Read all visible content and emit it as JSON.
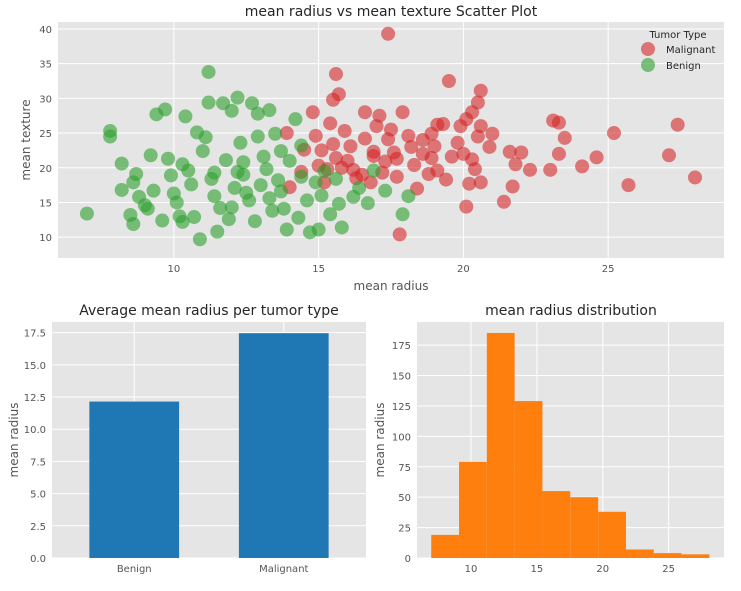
{
  "colors": {
    "malignant": "#d62728",
    "benign": "#2ca02c",
    "bar": "#1f77b4",
    "hist": "#ff7f0e",
    "panel_bg": "#e5e5e5",
    "grid": "#ffffff"
  },
  "chart_data": [
    {
      "type": "scatter",
      "title": "mean radius vs mean texture Scatter Plot",
      "xlabel": "mean radius",
      "ylabel": "mean texture",
      "xlim": [
        6,
        29
      ],
      "ylim": [
        7,
        41
      ],
      "xticks": [
        10,
        15,
        20,
        25
      ],
      "yticks": [
        10,
        15,
        20,
        25,
        30,
        35,
        40
      ],
      "legend": {
        "title": "Tumor Type",
        "position": "top-right",
        "entries": [
          "Malignant",
          "Benign"
        ]
      },
      "series": [
        {
          "name": "Malignant",
          "points": [
            [
              17.4,
              39.3
            ],
            [
              19.5,
              32.5
            ],
            [
              20.6,
              31.1
            ],
            [
              27.4,
              26.2
            ],
            [
              28.0,
              18.6
            ],
            [
              25.7,
              17.5
            ],
            [
              27.1,
              21.8
            ],
            [
              25.2,
              25.0
            ],
            [
              24.6,
              21.5
            ],
            [
              24.1,
              20.2
            ],
            [
              23.1,
              26.8
            ],
            [
              23.3,
              26.5
            ],
            [
              23.5,
              24.3
            ],
            [
              23.3,
              22.0
            ],
            [
              23.0,
              19.7
            ],
            [
              22.3,
              19.7
            ],
            [
              21.7,
              17.3
            ],
            [
              21.6,
              22.3
            ],
            [
              21.8,
              20.5
            ],
            [
              21.4,
              15.1
            ],
            [
              20.9,
              23.0
            ],
            [
              21.0,
              24.9
            ],
            [
              20.6,
              26.0
            ],
            [
              20.5,
              24.5
            ],
            [
              20.3,
              28.0
            ],
            [
              20.5,
              29.4
            ],
            [
              20.1,
              27.0
            ],
            [
              19.9,
              26.0
            ],
            [
              19.8,
              23.6
            ],
            [
              20.0,
              22.0
            ],
            [
              20.3,
              21.2
            ],
            [
              20.4,
              19.8
            ],
            [
              20.6,
              17.9
            ],
            [
              20.2,
              17.7
            ],
            [
              20.1,
              14.4
            ],
            [
              19.6,
              21.6
            ],
            [
              19.3,
              26.3
            ],
            [
              19.1,
              26.2
            ],
            [
              18.9,
              24.9
            ],
            [
              19.0,
              23.1
            ],
            [
              18.9,
              21.4
            ],
            [
              18.8,
              19.1
            ],
            [
              18.6,
              22.0
            ],
            [
              18.4,
              17.0
            ],
            [
              18.3,
              20.4
            ],
            [
              18.2,
              23.0
            ],
            [
              18.1,
              24.6
            ],
            [
              17.9,
              28.0
            ],
            [
              17.6,
              22.2
            ],
            [
              17.5,
              25.5
            ],
            [
              17.4,
              24.1
            ],
            [
              17.3,
              20.9
            ],
            [
              17.2,
              19.3
            ],
            [
              17.0,
              26.0
            ],
            [
              16.9,
              21.7
            ],
            [
              16.6,
              28.0
            ],
            [
              16.6,
              24.2
            ],
            [
              16.5,
              19.0
            ],
            [
              16.3,
              18.5
            ],
            [
              16.1,
              23.1
            ],
            [
              16.0,
              21.0
            ],
            [
              15.9,
              25.3
            ],
            [
              15.6,
              21.4
            ],
            [
              15.5,
              29.8
            ],
            [
              15.7,
              30.6
            ],
            [
              15.4,
              26.4
            ],
            [
              15.5,
              23.4
            ],
            [
              15.3,
              19.8
            ],
            [
              15.2,
              17.9
            ],
            [
              15.1,
              22.5
            ],
            [
              15.0,
              20.3
            ],
            [
              15.6,
              33.5
            ],
            [
              14.8,
              28.0
            ],
            [
              14.9,
              24.6
            ],
            [
              14.5,
              22.6
            ],
            [
              14.4,
              19.4
            ],
            [
              13.9,
              25.0
            ],
            [
              14.0,
              17.2
            ],
            [
              16.9,
              22.3
            ],
            [
              17.7,
              18.7
            ],
            [
              17.8,
              10.4
            ],
            [
              18.6,
              24.0
            ],
            [
              19.1,
              19.6
            ],
            [
              16.2,
              19.7
            ],
            [
              16.8,
              17.9
            ],
            [
              15.8,
              20.0
            ],
            [
              22.0,
              22.2
            ],
            [
              19.4,
              18.3
            ],
            [
              17.1,
              27.5
            ],
            [
              17.7,
              21.3
            ]
          ]
        },
        {
          "name": "Benign",
          "points": [
            [
              11.2,
              33.8
            ],
            [
              7.0,
              13.4
            ],
            [
              7.8,
              25.3
            ],
            [
              7.8,
              24.5
            ],
            [
              8.2,
              20.6
            ],
            [
              8.2,
              16.8
            ],
            [
              8.6,
              11.9
            ],
            [
              8.5,
              13.2
            ],
            [
              8.6,
              17.9
            ],
            [
              8.8,
              15.8
            ],
            [
              9.0,
              14.6
            ],
            [
              9.2,
              21.8
            ],
            [
              9.4,
              27.7
            ],
            [
              9.7,
              28.4
            ],
            [
              9.9,
              18.9
            ],
            [
              10.0,
              16.3
            ],
            [
              10.2,
              13.0
            ],
            [
              10.3,
              12.2
            ],
            [
              10.3,
              20.5
            ],
            [
              10.4,
              27.4
            ],
            [
              10.8,
              25.1
            ],
            [
              10.9,
              9.7
            ],
            [
              11.2,
              29.4
            ],
            [
              11.4,
              19.3
            ],
            [
              11.5,
              10.8
            ],
            [
              11.7,
              29.3
            ],
            [
              11.8,
              21.1
            ],
            [
              12.0,
              28.2
            ],
            [
              12.2,
              30.1
            ],
            [
              12.4,
              19.0
            ],
            [
              12.7,
              29.3
            ],
            [
              12.9,
              27.8
            ],
            [
              13.1,
              21.6
            ],
            [
              13.3,
              28.3
            ],
            [
              13.5,
              24.9
            ],
            [
              13.7,
              16.6
            ],
            [
              13.9,
              11.1
            ],
            [
              14.2,
              27.0
            ],
            [
              14.4,
              23.2
            ],
            [
              14.7,
              10.7
            ],
            [
              15.0,
              11.1
            ],
            [
              15.2,
              19.5
            ],
            [
              15.4,
              13.3
            ],
            [
              15.8,
              11.4
            ],
            [
              15.7,
              14.8
            ],
            [
              16.2,
              15.8
            ],
            [
              16.4,
              17.1
            ],
            [
              16.9,
              19.6
            ],
            [
              17.3,
              16.7
            ],
            [
              17.9,
              13.3
            ],
            [
              18.1,
              15.9
            ],
            [
              8.7,
              19.1
            ],
            [
              9.3,
              16.7
            ],
            [
              9.8,
              21.3
            ],
            [
              10.6,
              17.6
            ],
            [
              11.0,
              22.4
            ],
            [
              11.6,
              14.2
            ],
            [
              12.1,
              17.1
            ],
            [
              12.6,
              15.3
            ],
            [
              13.2,
              19.8
            ],
            [
              13.8,
              14.1
            ],
            [
              14.4,
              18.7
            ],
            [
              15.1,
              16.0
            ],
            [
              10.1,
              15.0
            ],
            [
              11.9,
              12.6
            ],
            [
              12.8,
              12.3
            ],
            [
              13.6,
              18.2
            ],
            [
              14.0,
              21.0
            ],
            [
              14.6,
              15.3
            ],
            [
              11.3,
              18.4
            ],
            [
              12.3,
              23.6
            ],
            [
              12.5,
              16.4
            ],
            [
              13.0,
              17.5
            ],
            [
              13.4,
              13.8
            ],
            [
              14.9,
              17.9
            ],
            [
              9.6,
              12.4
            ],
            [
              10.7,
              12.9
            ],
            [
              11.4,
              15.9
            ],
            [
              12.4,
              20.8
            ],
            [
              13.3,
              15.6
            ],
            [
              14.3,
              12.8
            ],
            [
              12.9,
              24.5
            ],
            [
              11.1,
              24.4
            ],
            [
              12.0,
              14.3
            ],
            [
              10.5,
              19.6
            ],
            [
              9.1,
              14.1
            ],
            [
              15.6,
              18.4
            ],
            [
              16.7,
              14.9
            ],
            [
              13.7,
              22.4
            ],
            [
              12.2,
              19.4
            ]
          ]
        }
      ]
    },
    {
      "type": "bar",
      "title": "Average mean radius per tumor type",
      "xlabel": "",
      "ylabel": "mean radius",
      "categories": [
        "Benign",
        "Malignant"
      ],
      "values": [
        12.15,
        17.46
      ],
      "ylim": [
        0,
        18.33
      ],
      "yticks": [
        0.0,
        2.5,
        5.0,
        7.5,
        10.0,
        12.5,
        15.0,
        17.5
      ],
      "ytick_labels": [
        "0.0",
        "2.5",
        "5.0",
        "7.5",
        "10.0",
        "12.5",
        "15.0",
        "17.5"
      ]
    },
    {
      "type": "bar",
      "subtype": "histogram",
      "title": "mean radius distribution",
      "xlabel": "",
      "ylabel": "mean radius",
      "bin_edges": [
        6.98,
        9.09,
        11.2,
        13.31,
        15.42,
        17.53,
        19.65,
        21.76,
        23.87,
        25.98,
        28.09
      ],
      "counts": [
        19,
        79,
        185,
        129,
        55,
        50,
        38,
        7,
        4,
        3
      ],
      "xlim": [
        5.9,
        29.2
      ],
      "ylim": [
        0,
        194
      ],
      "xticks": [
        10,
        15,
        20,
        25
      ],
      "yticks": [
        0,
        25,
        50,
        75,
        100,
        125,
        150,
        175
      ]
    }
  ]
}
